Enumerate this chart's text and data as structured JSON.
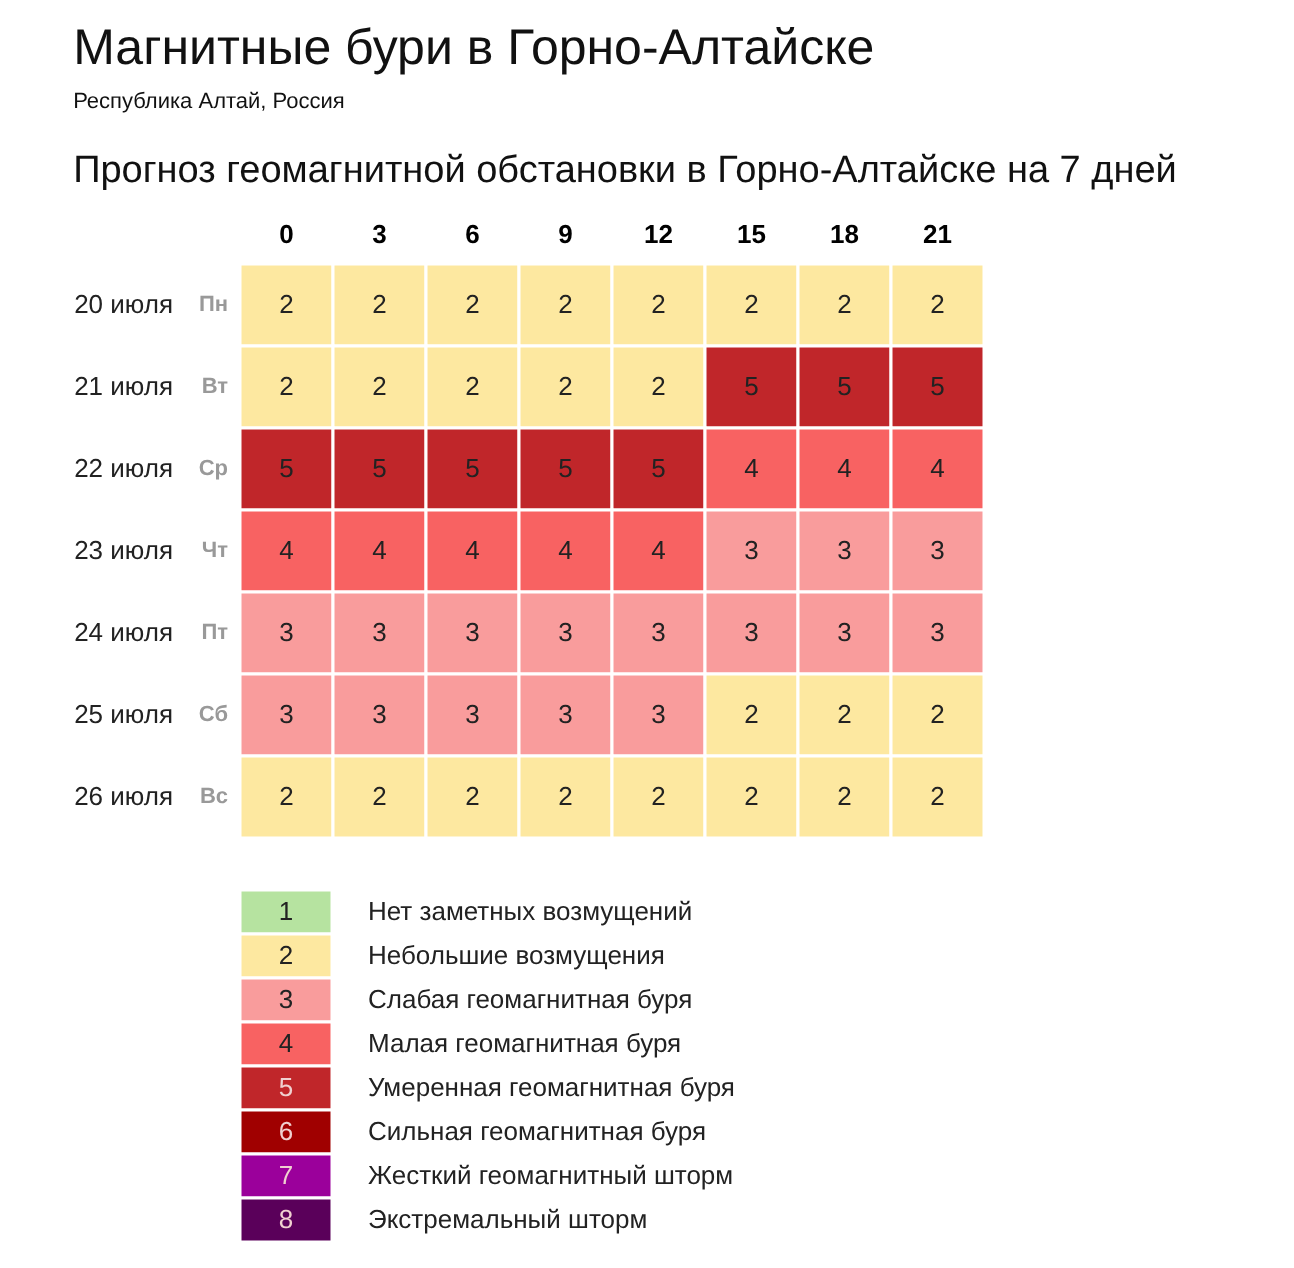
{
  "chart_data": {
    "type": "heatmap",
    "title": "Магнитные бури в Горно-Алтайске",
    "subtitle": "Республика Алтай, Россия",
    "annotations": [
      "Прогноз геомагнитной обстановки в Горно-Алтайске на 7 дней",
      "Нет заметных возмущений",
      "Небольшие возмущения",
      "Слабая геомагнитная буря",
      "Малая геомагнитная буря",
      "Умеренная геомагнитная буря",
      "Сильная геомагнитная буря",
      "Жесткий геомагнитный шторм",
      "Экстремальный шторм"
    ],
    "categories": [
      "0",
      "3",
      "6",
      "9",
      "12",
      "15",
      "18",
      "21"
    ],
    "y_categories": [
      "20 июля",
      "21 июля",
      "22 июля",
      "23 июля",
      "24 июля",
      "25 июля",
      "26 июля"
    ],
    "y2_categories": [
      "Пн",
      "Вт",
      "Ср",
      "Чт",
      "Пт",
      "Сб",
      "Вс"
    ],
    "cells": [
      [
        2,
        2,
        2,
        2,
        2,
        2,
        2,
        2
      ],
      [
        2,
        2,
        2,
        2,
        2,
        5,
        5,
        5
      ],
      [
        5,
        5,
        5,
        5,
        5,
        4,
        4,
        4
      ],
      [
        4,
        4,
        4,
        4,
        4,
        3,
        3,
        3
      ],
      [
        3,
        3,
        3,
        3,
        3,
        3,
        3,
        3
      ],
      [
        3,
        3,
        3,
        3,
        3,
        2,
        2,
        2
      ],
      [
        2,
        2,
        2,
        2,
        2,
        2,
        2,
        2
      ]
    ],
    "data_labels": true,
    "clim": [
      1,
      8
    ],
    "cticks": [
      1,
      2,
      3,
      4,
      5,
      6,
      7,
      8
    ],
    "colors": [
      "#b6e3a0",
      "#fde8a0",
      "#f99c9c",
      "#f86262",
      "#c0262a",
      "#a00000",
      "#9b009b",
      "#5a005a"
    ]
  }
}
